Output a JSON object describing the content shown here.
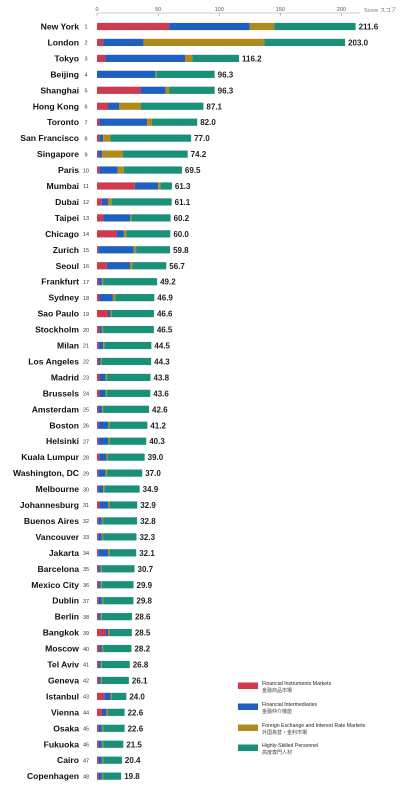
{
  "chart_data": {
    "type": "bar",
    "stacked": true,
    "orientation": "horizontal",
    "xlabel": "Score スコア",
    "xlim": [
      0,
      220
    ],
    "xticks": [
      0,
      50,
      100,
      150,
      200
    ],
    "grid": false,
    "legend_position": "bottom-right",
    "categories": [
      "New York",
      "London",
      "Tokyo",
      "Beijing",
      "Shanghai",
      "Hong Kong",
      "Toronto",
      "San Francisco",
      "Singapore",
      "Paris",
      "Mumbai",
      "Dubai",
      "Taipei",
      "Chicago",
      "Zurich",
      "Seoul",
      "Frankfurt",
      "Sydney",
      "Sao Paulo",
      "Stockholm",
      "Milan",
      "Los Angeles",
      "Madrid",
      "Brussels",
      "Amsterdam",
      "Boston",
      "Helsinki",
      "Kuala Lumpur",
      "Washington, DC",
      "Melbourne",
      "Johannesburg",
      "Buenos Aires",
      "Vancouver",
      "Jakarta",
      "Barcelona",
      "Mexico City",
      "Dublin",
      "Berlin",
      "Bangkok",
      "Moscow",
      "Tel Aviv",
      "Geneva",
      "Istanbul",
      "Vienna",
      "Osaka",
      "Fukuoka",
      "Cairo",
      "Copenhagen"
    ],
    "ranks": [
      1,
      2,
      3,
      4,
      5,
      6,
      7,
      8,
      9,
      10,
      11,
      12,
      13,
      14,
      15,
      16,
      17,
      18,
      19,
      20,
      21,
      22,
      23,
      24,
      25,
      26,
      27,
      28,
      29,
      30,
      31,
      32,
      33,
      34,
      35,
      36,
      37,
      38,
      39,
      40,
      41,
      42,
      43,
      44,
      45,
      46,
      47,
      48
    ],
    "totals": [
      211.6,
      203.0,
      116.2,
      96.3,
      96.3,
      87.1,
      82.0,
      77.0,
      74.2,
      69.5,
      61.3,
      61.1,
      60.2,
      60.0,
      59.8,
      56.7,
      49.2,
      46.9,
      46.6,
      46.5,
      44.5,
      44.3,
      43.8,
      43.6,
      42.6,
      41.2,
      40.3,
      39.0,
      37.0,
      34.9,
      32.9,
      32.8,
      32.3,
      32.1,
      30.7,
      29.9,
      29.8,
      28.6,
      28.5,
      28.2,
      26.8,
      26.1,
      24.0,
      22.6,
      22.6,
      21.5,
      20.4,
      19.8
    ],
    "total_labels": [
      "211.6",
      "203.0",
      "116.2",
      "96.3",
      "96.3",
      "87.1",
      "82.0",
      "77.0",
      "74.2",
      "69.5",
      "61.3",
      "61.1",
      "60.2",
      "60.0",
      "59.8",
      "56.7",
      "49.2",
      "46.9",
      "46.6",
      "46.5",
      "44.5",
      "44.3",
      "43.8",
      "43.6",
      "42.6",
      "41.2",
      "40.3",
      "39.0",
      "37.0",
      "34.9",
      "32.9",
      "32.8",
      "32.3",
      "32.1",
      "30.7",
      "29.9",
      "29.8",
      "28.6",
      "28.5",
      "28.2",
      "26.8",
      "26.1",
      "24.0",
      "22.6",
      "22.6",
      "21.5",
      "20.4",
      "19.8"
    ],
    "series": [
      {
        "name": "Financial Instruments Markets",
        "name_jp": "金融商品市場",
        "color": "#d03a4f",
        "values": [
          59,
          5,
          7,
          0,
          36,
          9,
          2,
          2,
          1,
          2,
          31,
          4,
          5,
          16,
          1,
          8,
          1,
          2,
          9,
          2,
          1,
          1,
          2,
          2,
          1,
          1,
          1,
          2,
          1,
          1,
          2,
          1,
          1,
          1,
          1,
          1,
          1,
          1,
          7,
          2,
          1,
          1,
          6,
          4,
          1,
          1,
          1,
          1
        ]
      },
      {
        "name": "Financial Intermediaries",
        "name_jp": "金融仲介機能",
        "color": "#1f5fc0",
        "values": [
          66,
          33,
          65,
          48,
          20,
          9,
          39,
          3,
          3,
          15,
          19,
          5,
          22,
          6,
          29,
          19,
          3,
          11,
          2,
          2,
          4,
          2,
          5,
          5,
          3,
          8,
          8,
          6,
          6,
          4,
          7,
          3,
          3,
          8,
          2,
          2,
          3,
          2,
          2,
          2,
          2,
          2,
          5,
          4,
          3,
          3,
          3,
          3
        ]
      },
      {
        "name": "Foreign Exchange and Interest Rate Markets",
        "name_jp": "外国為替・金利市場",
        "color": "#b08a1e",
        "values": [
          20,
          99,
          6,
          1,
          3,
          18,
          4,
          6,
          17,
          5,
          2,
          3,
          1,
          2,
          2,
          2,
          1,
          2,
          1,
          1,
          1,
          1,
          1,
          1,
          1,
          1,
          1,
          1,
          1,
          1,
          1,
          1,
          1,
          1,
          1,
          1,
          1,
          1,
          1,
          1,
          1,
          1,
          1,
          1,
          1,
          1,
          1,
          1
        ]
      },
      {
        "name": "Highly-Skilled Personnel",
        "name_jp": "高度専門人材",
        "color": "#1a9078",
        "values": [
          66.6,
          66,
          38.2,
          47.3,
          37.3,
          51.1,
          37,
          66,
          53.2,
          47.5,
          9.3,
          49.1,
          32.2,
          36,
          27.8,
          27.7,
          44.2,
          31.9,
          34.6,
          41.5,
          38.5,
          40.3,
          35.8,
          35.6,
          37.6,
          31.2,
          30.3,
          30,
          29,
          28.9,
          22.9,
          27.8,
          27.3,
          22.1,
          26.7,
          25.9,
          24.8,
          24.6,
          18.5,
          23.2,
          22.8,
          22.1,
          12,
          13.6,
          17.6,
          16.5,
          15.4,
          14.8
        ]
      }
    ]
  }
}
